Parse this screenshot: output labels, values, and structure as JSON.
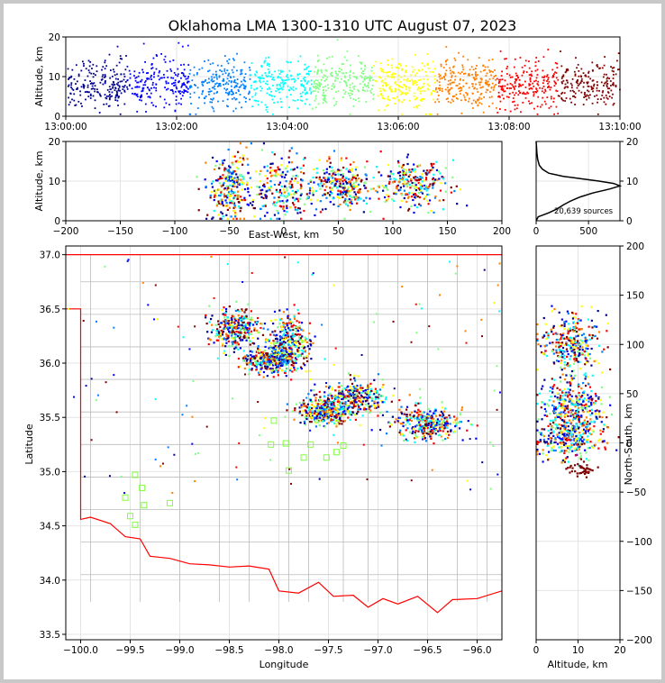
{
  "title": "Oklahoma LMA 1300-1310 UTC August 07, 2023",
  "colors": {
    "state_border": "#ff0000",
    "county_lines": "#bbbbbb",
    "stations": "#7fff3f",
    "histogram_line": "#000000",
    "colormap": [
      "#00008f",
      "#0000ff",
      "#007fff",
      "#00ffff",
      "#7fff7f",
      "#ffff00",
      "#ff7f00",
      "#ff0000",
      "#7f0000"
    ]
  },
  "chart_data": [
    {
      "id": "time_height",
      "type": "scatter",
      "ylabel": "Altitude, km",
      "ylim": [
        0,
        20
      ],
      "yticks": [
        "0",
        "10",
        "20"
      ],
      "xlim": [
        "13:00:00",
        "13:10:00"
      ],
      "xticks": [
        "13:00:00",
        "13:02:00",
        "13:04:00",
        "13:06:00",
        "13:08:00",
        "13:10:00"
      ],
      "grid": true,
      "color_by": "time",
      "note_bands": [
        {
          "t": 0.3,
          "alt_low": 1,
          "alt_high": 19
        },
        {
          "t": 1.2,
          "alt_low": 1,
          "alt_high": 18
        },
        {
          "t": 2.6,
          "alt_low": 1,
          "alt_high": 19
        },
        {
          "t": 3.2,
          "alt_low": 1,
          "alt_high": 16
        },
        {
          "t": 4.8,
          "alt_low": 1,
          "alt_high": 16
        },
        {
          "t": 6.3,
          "alt_low": 2,
          "alt_high": 16
        },
        {
          "t": 7.8,
          "alt_low": 1,
          "alt_high": 16
        },
        {
          "t": 9.5,
          "alt_low": 1,
          "alt_high": 13
        }
      ]
    },
    {
      "id": "east_west_altitude",
      "type": "scatter",
      "xlabel": "East-West, km",
      "ylabel": "Altitude, km",
      "xlim": [
        -200,
        200
      ],
      "ylim": [
        0,
        20
      ],
      "xticks": [
        "−200",
        "−150",
        "−100",
        "−50",
        "0",
        "50",
        "100",
        "150",
        "200"
      ],
      "yticks": [
        "0",
        "10",
        "20"
      ],
      "grid": true,
      "clusters": [
        {
          "x": -50,
          "alt": 8,
          "sx": 10,
          "sa": 4
        },
        {
          "x": 0,
          "alt": 8,
          "sx": 18,
          "sa": 4
        },
        {
          "x": 55,
          "alt": 9,
          "sx": 12,
          "sa": 3
        },
        {
          "x": 120,
          "alt": 9,
          "sx": 15,
          "sa": 3
        }
      ]
    },
    {
      "id": "altitude_histogram",
      "type": "line",
      "annotation": "20,639 sources",
      "xlim": [
        0,
        800
      ],
      "ylim": [
        0,
        20
      ],
      "xticks": [
        "0",
        "500"
      ],
      "yticks": [
        "0",
        "10",
        "20"
      ],
      "series": [
        {
          "points": [
            [
              0,
              0
            ],
            [
              20,
              1
            ],
            [
              120,
              2
            ],
            [
              200,
              3
            ],
            [
              260,
              4
            ],
            [
              330,
              5
            ],
            [
              420,
              6
            ],
            [
              540,
              7
            ],
            [
              700,
              8
            ],
            [
              800,
              8.8
            ],
            [
              740,
              9.4
            ],
            [
              600,
              10
            ],
            [
              430,
              10.6
            ],
            [
              260,
              11.2
            ],
            [
              120,
              12
            ],
            [
              60,
              13
            ],
            [
              30,
              14
            ],
            [
              15,
              15.5
            ],
            [
              8,
              17
            ],
            [
              3,
              19
            ],
            [
              0,
              20
            ]
          ]
        }
      ]
    },
    {
      "id": "plan_view",
      "type": "scatter",
      "xlabel": "Longitude",
      "ylabel": "Latitude",
      "xlim": [
        -100.15,
        -95.75
      ],
      "ylim": [
        33.45,
        37.08
      ],
      "xticks": [
        "−100.0",
        "−99.5",
        "−99.0",
        "−98.5",
        "−98.0",
        "−97.5",
        "−97.0",
        "−96.5",
        "−96.0"
      ],
      "yticks": [
        "33.5",
        "34.0",
        "34.5",
        "35.0",
        "35.5",
        "36.0",
        "36.5",
        "37.0"
      ],
      "grid": true,
      "clusters": [
        {
          "lon": -98.45,
          "lat": 36.32,
          "slon": 0.12,
          "slat": 0.09
        },
        {
          "lon": -97.9,
          "lat": 36.2,
          "slon": 0.12,
          "slat": 0.12
        },
        {
          "lon": -98.1,
          "lat": 36.03,
          "slon": 0.12,
          "slat": 0.06
        },
        {
          "lon": -97.25,
          "lat": 35.68,
          "slon": 0.16,
          "slat": 0.08
        },
        {
          "lon": -97.55,
          "lat": 35.55,
          "slon": 0.12,
          "slat": 0.06
        },
        {
          "lon": -96.5,
          "lat": 35.45,
          "slon": 0.18,
          "slat": 0.07
        }
      ],
      "stations": [
        [
          -99.45,
          34.97
        ],
        [
          -99.38,
          34.85
        ],
        [
          -99.55,
          34.76
        ],
        [
          -99.36,
          34.69
        ],
        [
          -99.5,
          34.59
        ],
        [
          -99.45,
          34.51
        ],
        [
          -99.1,
          34.71
        ],
        [
          -98.08,
          35.25
        ],
        [
          -98.05,
          35.47
        ],
        [
          -97.93,
          35.26
        ],
        [
          -97.9,
          35.01
        ],
        [
          -97.75,
          35.13
        ],
        [
          -97.68,
          35.25
        ],
        [
          -97.52,
          35.13
        ],
        [
          -97.42,
          35.18
        ],
        [
          -97.35,
          35.24
        ]
      ]
    },
    {
      "id": "altitude_north_south",
      "type": "scatter",
      "xlabel": "Altitude, km",
      "ylabel": "North-South, km",
      "xlim": [
        0,
        20
      ],
      "ylim": [
        -200,
        200
      ],
      "xticks": [
        "0",
        "10",
        "20"
      ],
      "yticks": [
        "−200",
        "−150",
        "−100",
        "−50",
        "0",
        "50",
        "100",
        "150",
        "200"
      ],
      "grid": true,
      "clusters": [
        {
          "alt": 8,
          "y": 100,
          "sa": 3.5,
          "sy": 14
        },
        {
          "alt": 9,
          "y": 38,
          "sa": 3.5,
          "sy": 14
        },
        {
          "alt": 8,
          "y": 5,
          "sa": 4,
          "sy": 12
        },
        {
          "alt": 11,
          "y": -27,
          "sa": 1.5,
          "sy": 3
        }
      ]
    }
  ]
}
